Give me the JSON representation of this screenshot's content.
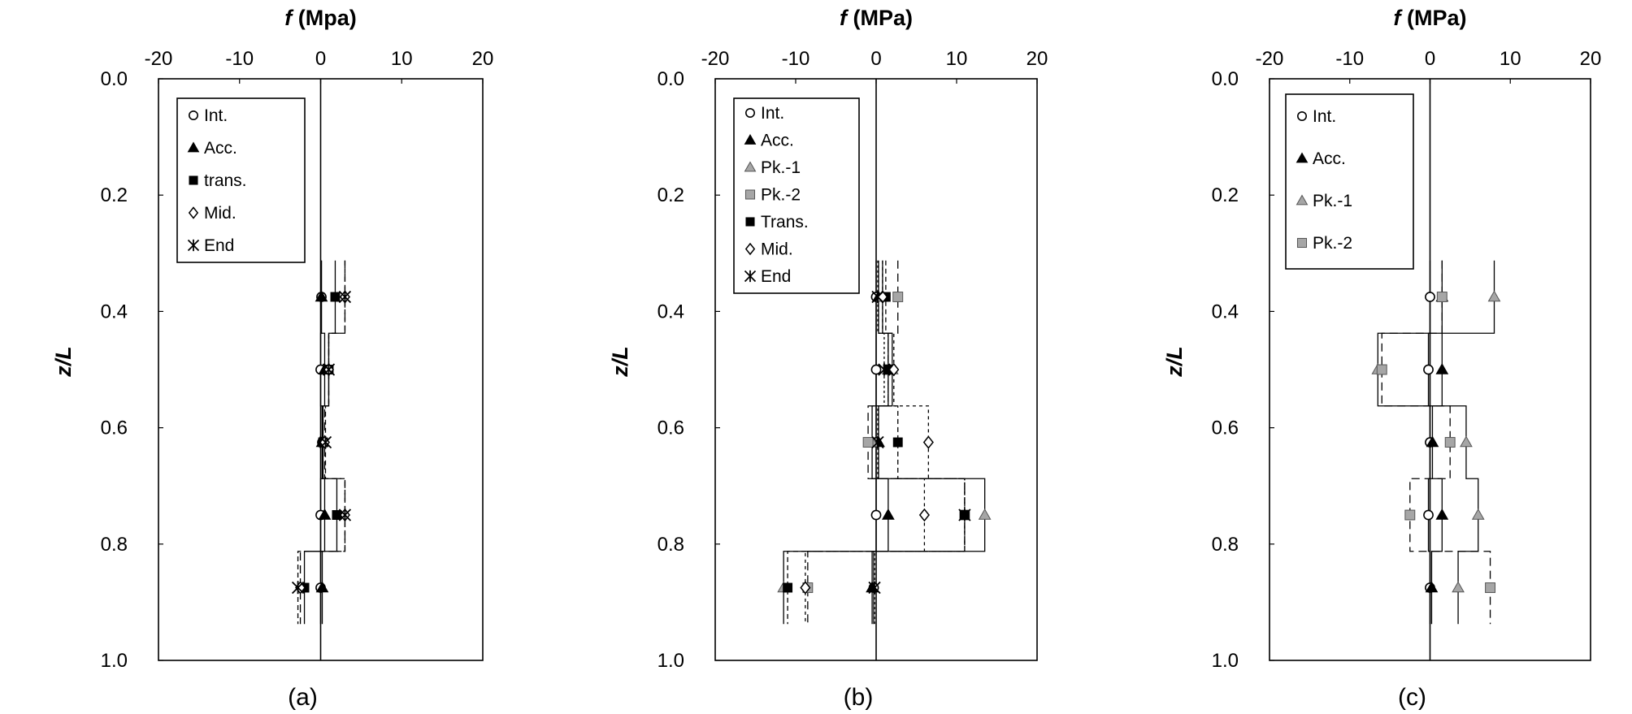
{
  "figure": {
    "panel_labels": [
      "(a)",
      "(b)",
      "(c)"
    ]
  },
  "chart_data": [
    {
      "type": "scatter",
      "panel": "(a)",
      "xlabel_italic": "f",
      "xlabel_unit": " (Mpa)",
      "ylabel": "z/L",
      "xlim": [
        -20,
        20
      ],
      "ylim": [
        0,
        1.0
      ],
      "x_axis_position": "top",
      "y_inverted": true,
      "xticks": [
        -20,
        -10,
        0,
        10,
        20
      ],
      "yticks": [
        "0.0",
        "0.2",
        "0.4",
        "0.6",
        "0.8",
        "1.0"
      ],
      "legend_location": "top-left",
      "series": [
        {
          "name": "Int.",
          "marker": "circle-open",
          "x": [
            0.1,
            0.0,
            0.2,
            0.0,
            0.0
          ],
          "y": [
            0.375,
            0.5,
            0.625,
            0.75,
            0.875
          ]
        },
        {
          "name": "Acc.",
          "marker": "triangle-filled",
          "x": [
            0.1,
            0.5,
            0.2,
            0.5,
            0.2
          ],
          "y": [
            0.375,
            0.5,
            0.625,
            0.75,
            0.875
          ]
        },
        {
          "name": "trans.",
          "marker": "square-filled",
          "x": [
            1.8,
            1.0,
            0.3,
            2.0,
            -2.0
          ],
          "y": [
            0.375,
            0.5,
            0.625,
            0.75,
            0.875
          ]
        },
        {
          "name": "Mid.",
          "marker": "diamond-open",
          "x": [
            3.0,
            1.0,
            0.5,
            3.0,
            -2.5
          ],
          "y": [
            0.375,
            0.5,
            0.625,
            0.75,
            0.875
          ]
        },
        {
          "name": "End",
          "marker": "asterisk",
          "x": [
            3.0,
            1.0,
            0.6,
            3.0,
            -2.8
          ],
          "y": [
            0.375,
            0.5,
            0.625,
            0.75,
            0.875
          ]
        }
      ]
    },
    {
      "type": "scatter",
      "panel": "(b)",
      "xlabel_italic": "f",
      "xlabel_unit": " (MPa)",
      "ylabel": "z/L",
      "xlim": [
        -20,
        20
      ],
      "ylim": [
        0,
        1.0
      ],
      "x_axis_position": "top",
      "y_inverted": true,
      "xticks": [
        -20,
        -10,
        0,
        10,
        20
      ],
      "yticks": [
        "0.0",
        "0.2",
        "0.4",
        "0.6",
        "0.8",
        "1.0"
      ],
      "legend_location": "top-left",
      "series": [
        {
          "name": "Int.",
          "marker": "circle-open",
          "x": [
            0.0,
            0.0,
            0.0,
            0.0,
            -0.3
          ],
          "y": [
            0.375,
            0.5,
            0.625,
            0.75,
            0.875
          ]
        },
        {
          "name": "Acc.",
          "marker": "triangle-filled",
          "x": [
            0.3,
            1.5,
            0.3,
            1.5,
            -0.5
          ],
          "y": [
            0.375,
            0.5,
            0.625,
            0.75,
            0.875
          ]
        },
        {
          "name": "Pk.-1",
          "marker": "triangle-gray",
          "x": [
            0.8,
            2.0,
            -0.5,
            13.5,
            -11.5
          ],
          "y": [
            0.375,
            0.5,
            0.625,
            0.75,
            0.875
          ]
        },
        {
          "name": "Pk.-2",
          "marker": "square-gray",
          "x": [
            2.7,
            1.5,
            -1.0,
            11.0,
            -8.5
          ],
          "y": [
            0.375,
            0.5,
            0.625,
            0.75,
            0.875
          ]
        },
        {
          "name": "Trans.",
          "marker": "square-filled",
          "x": [
            1.2,
            1.5,
            2.7,
            11.0,
            -11.0
          ],
          "y": [
            0.375,
            0.5,
            0.625,
            0.75,
            0.875
          ]
        },
        {
          "name": "Mid.",
          "marker": "diamond-open",
          "x": [
            0.8,
            2.2,
            6.5,
            6.0,
            -8.8
          ],
          "y": [
            0.375,
            0.5,
            0.625,
            0.75,
            0.875
          ]
        },
        {
          "name": "End",
          "marker": "asterisk",
          "x": [
            0.2,
            1.0,
            0.2,
            11.0,
            -0.2
          ],
          "y": [
            0.375,
            0.5,
            0.625,
            0.75,
            0.875
          ]
        }
      ]
    },
    {
      "type": "scatter",
      "panel": "(c)",
      "xlabel_italic": "f",
      "xlabel_unit": " (MPa)",
      "ylabel": "z/L",
      "xlim": [
        -20,
        20
      ],
      "ylim": [
        0,
        1.0
      ],
      "x_axis_position": "top",
      "y_inverted": true,
      "xticks": [
        -20,
        -10,
        0,
        10,
        20
      ],
      "yticks": [
        "0.0",
        "0.2",
        "0.4",
        "0.6",
        "0.8",
        "1.0"
      ],
      "legend_location": "top-left",
      "series": [
        {
          "name": "Int.",
          "marker": "circle-open",
          "x": [
            0.0,
            -0.2,
            0.0,
            -0.2,
            0.0
          ],
          "y": [
            0.375,
            0.5,
            0.625,
            0.75,
            0.875
          ]
        },
        {
          "name": "Acc.",
          "marker": "triangle-filled",
          "x": [
            1.5,
            1.5,
            0.3,
            1.5,
            0.2
          ],
          "y": [
            0.375,
            0.5,
            0.625,
            0.75,
            0.875
          ]
        },
        {
          "name": "Pk.-1",
          "marker": "triangle-gray",
          "x": [
            8.0,
            -6.5,
            4.5,
            6.0,
            3.5
          ],
          "y": [
            0.375,
            0.5,
            0.625,
            0.75,
            0.875
          ]
        },
        {
          "name": "Pk.-2",
          "marker": "square-gray",
          "x": [
            1.5,
            -6.0,
            2.5,
            -2.5,
            7.5
          ],
          "y": [
            0.375,
            0.5,
            0.625,
            0.75,
            0.875
          ]
        }
      ]
    }
  ]
}
